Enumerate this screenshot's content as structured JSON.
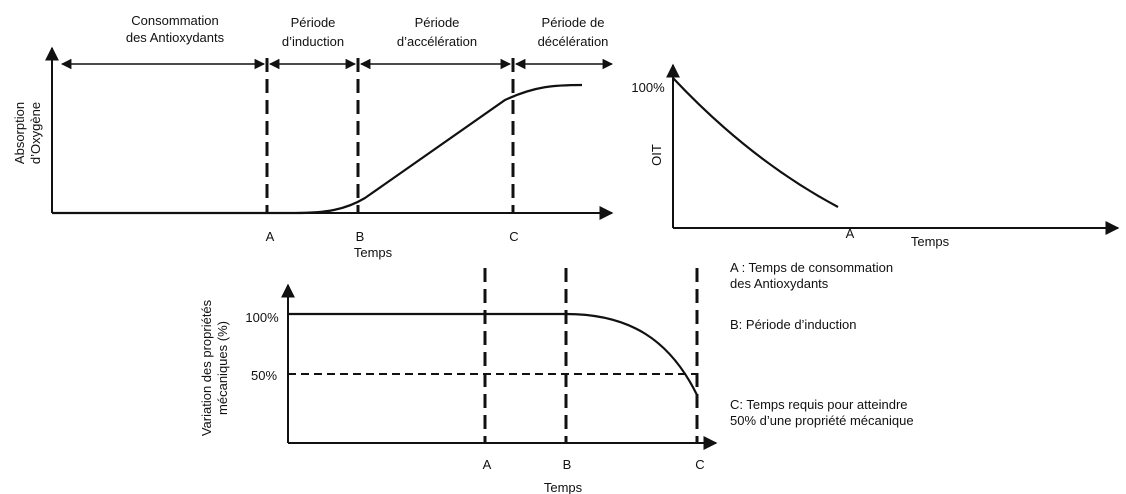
{
  "panel1": {
    "phases": [
      [
        "Consommation",
        "des Antioxydants"
      ],
      [
        "Période",
        "d’induction"
      ],
      [
        "Période",
        "d’accélération"
      ],
      [
        "Période de",
        "décélération"
      ]
    ],
    "y_label": [
      "Absorption",
      "d’Oxygène"
    ],
    "markers": [
      "A",
      "B",
      "C"
    ],
    "x_label": "Temps"
  },
  "panel2": {
    "y_label": "OIT",
    "tick": "100%",
    "marker": "A",
    "x_label": "Temps"
  },
  "panel3": {
    "y_label": [
      "Variation des propriétés",
      "mécaniques (%)"
    ],
    "ticks": [
      "100%",
      "50%"
    ],
    "markers": [
      "A",
      "B",
      "C"
    ],
    "x_label": "Temps"
  },
  "legend": [
    [
      "A : Temps de consommation",
      "des Antioxydants"
    ],
    [
      "B: Période d’induction"
    ],
    [
      "C: Temps requis pour atteindre",
      "50% d’une propriété mécanique"
    ]
  ]
}
